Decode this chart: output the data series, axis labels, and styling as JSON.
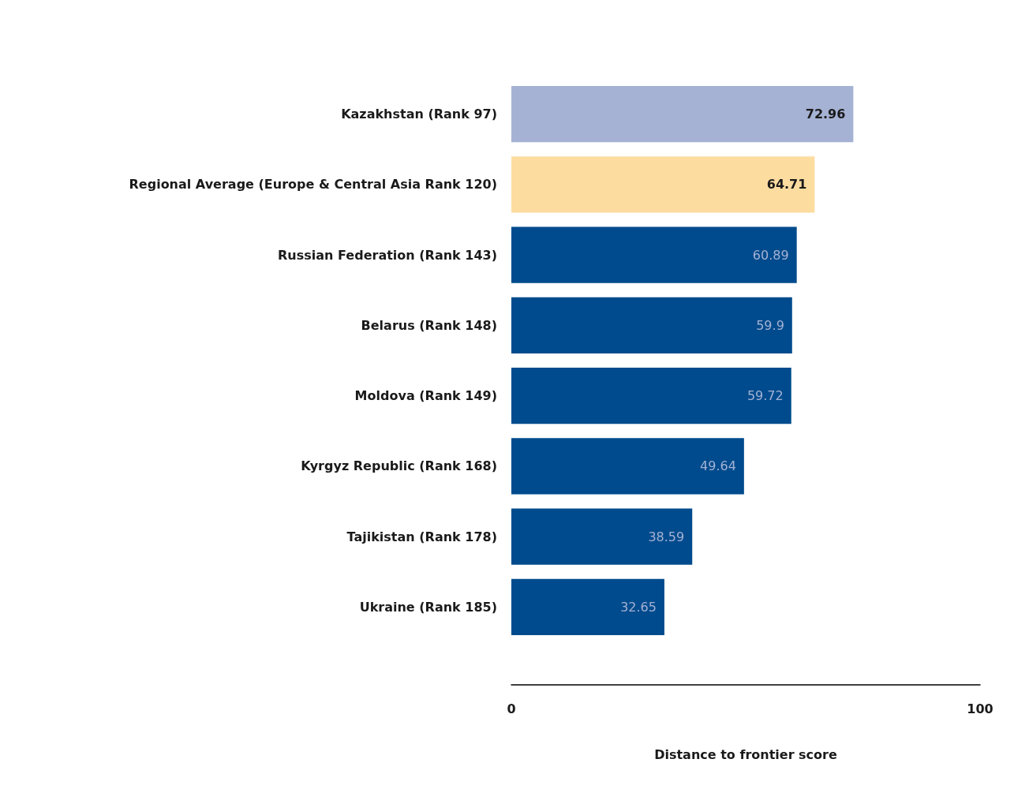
{
  "chart_data": {
    "type": "bar",
    "orientation": "horizontal",
    "xlabel": "Distance to frontier score",
    "categories": [
      "Kazakhstan (Rank 97)",
      "Regional Average (Europe & Central Asia Rank 120)",
      "Russian Federation (Rank 143)",
      "Belarus (Rank 148)",
      "Moldova (Rank 149)",
      "Kyrgyz Republic (Rank 168)",
      "Tajikistan (Rank 178)",
      "Ukraine (Rank 185)"
    ],
    "values": [
      72.96,
      64.71,
      60.89,
      59.9,
      59.72,
      49.64,
      38.59,
      32.65
    ],
    "colors": [
      "#a5b2d4",
      "#fddca0",
      "#004b8d",
      "#004b8d",
      "#004b8d",
      "#004b8d",
      "#004b8d",
      "#004b8d"
    ],
    "xlim": [
      0,
      100
    ],
    "xticks": [
      0,
      100
    ],
    "data_labels": true
  }
}
